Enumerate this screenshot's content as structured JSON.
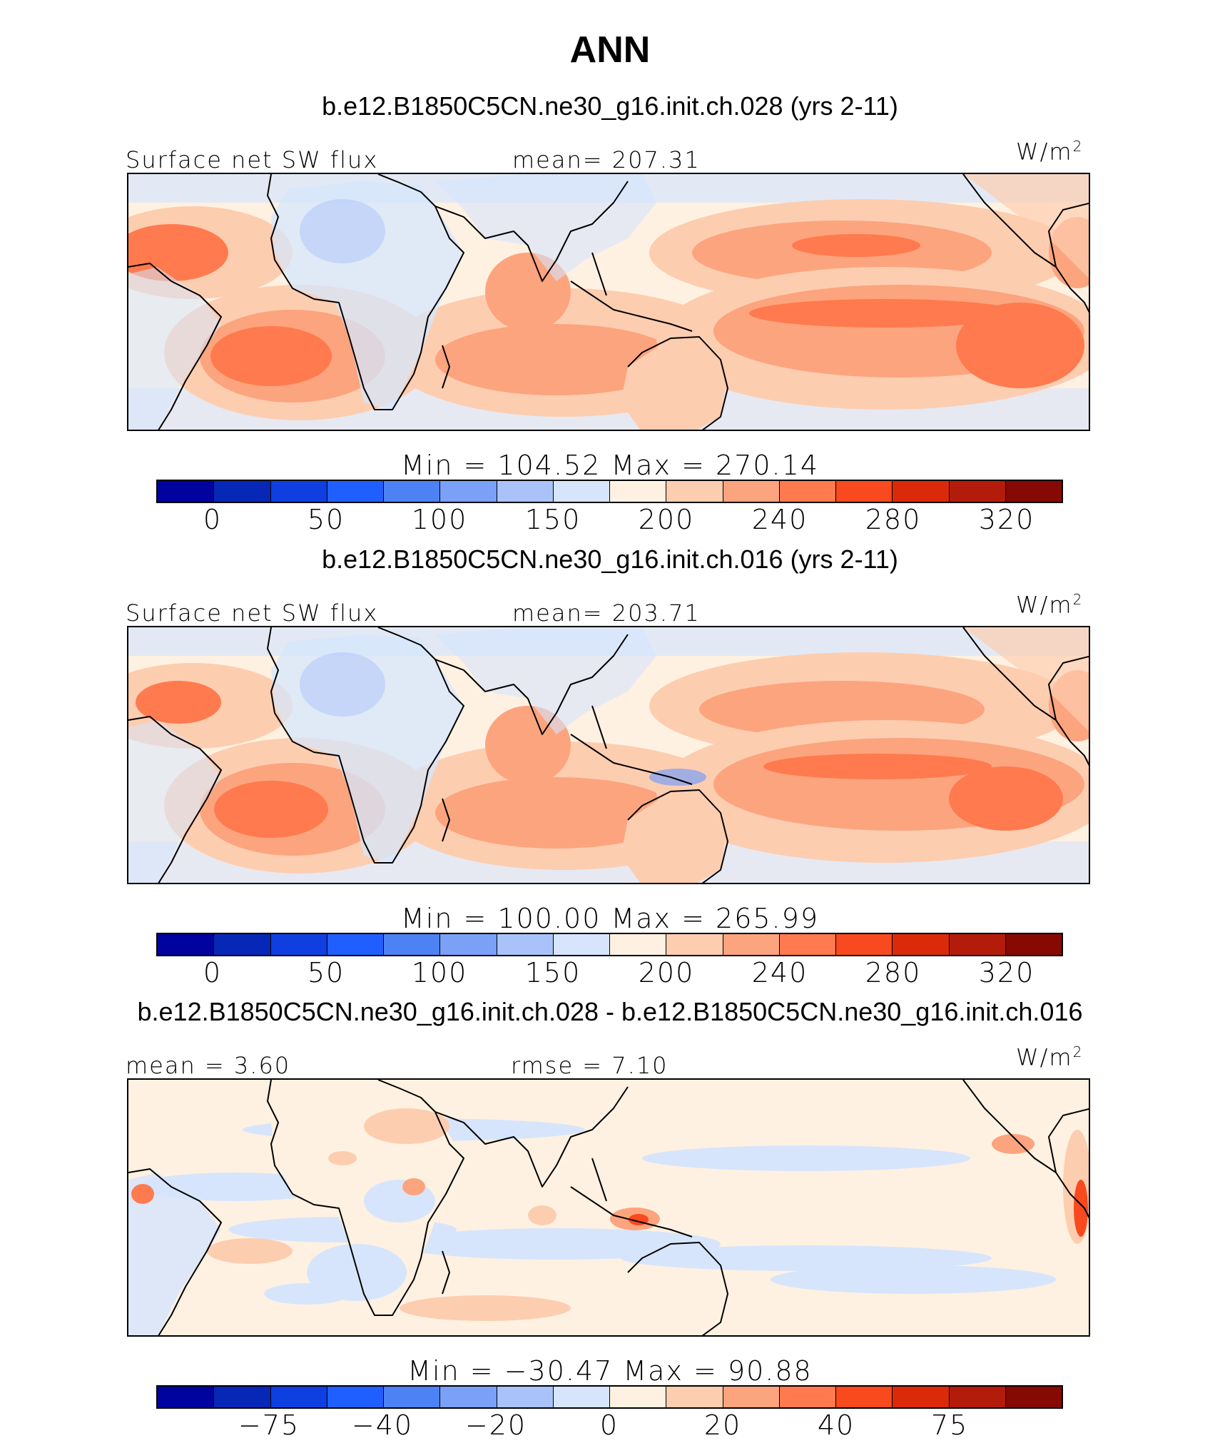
{
  "title": "ANN",
  "units": "W/m",
  "units_exp": "2",
  "colors": {
    "scale": [
      "#00039d",
      "#0727b7",
      "#0f3fe0",
      "#1f5fff",
      "#4d82f5",
      "#7ba0f7",
      "#a9c3fa",
      "#d6e5fc",
      "#fff1e1",
      "#fdcdb0",
      "#fca47e",
      "#ff7a4e",
      "#f9491e",
      "#db2a0a",
      "#b31c0a",
      "#860903"
    ],
    "land": "#fde9da",
    "coast": "#000000"
  },
  "panels": [
    {
      "title": "b.e12.B1850C5CN.ne30_g16.init.ch.028 (yrs 2-11)",
      "left_label": "Surface net SW flux",
      "center_label": "mean= 207.31",
      "minmax": "Min = 104.52 Max = 270.14",
      "ticks": [
        "0",
        "50",
        "100",
        "150",
        "200",
        "240",
        "280",
        "320"
      ]
    },
    {
      "title": "b.e12.B1850C5CN.ne30_g16.init.ch.016 (yrs 2-11)",
      "left_label": "Surface net SW flux",
      "center_label": "mean= 203.71",
      "minmax": "Min = 100.00 Max = 265.99",
      "ticks": [
        "0",
        "50",
        "100",
        "150",
        "200",
        "240",
        "280",
        "320"
      ]
    },
    {
      "title": "b.e12.B1850C5CN.ne30_g16.init.ch.028 - b.e12.B1850C5CN.ne30_g16.init.ch.016",
      "left_label": "mean = 3.60",
      "center_label": "rmse = 7.10",
      "minmax": "Min = −30.47 Max = 90.88",
      "ticks": [
        "−75",
        "−40",
        "−20",
        "0",
        "20",
        "40",
        "75"
      ]
    }
  ]
}
